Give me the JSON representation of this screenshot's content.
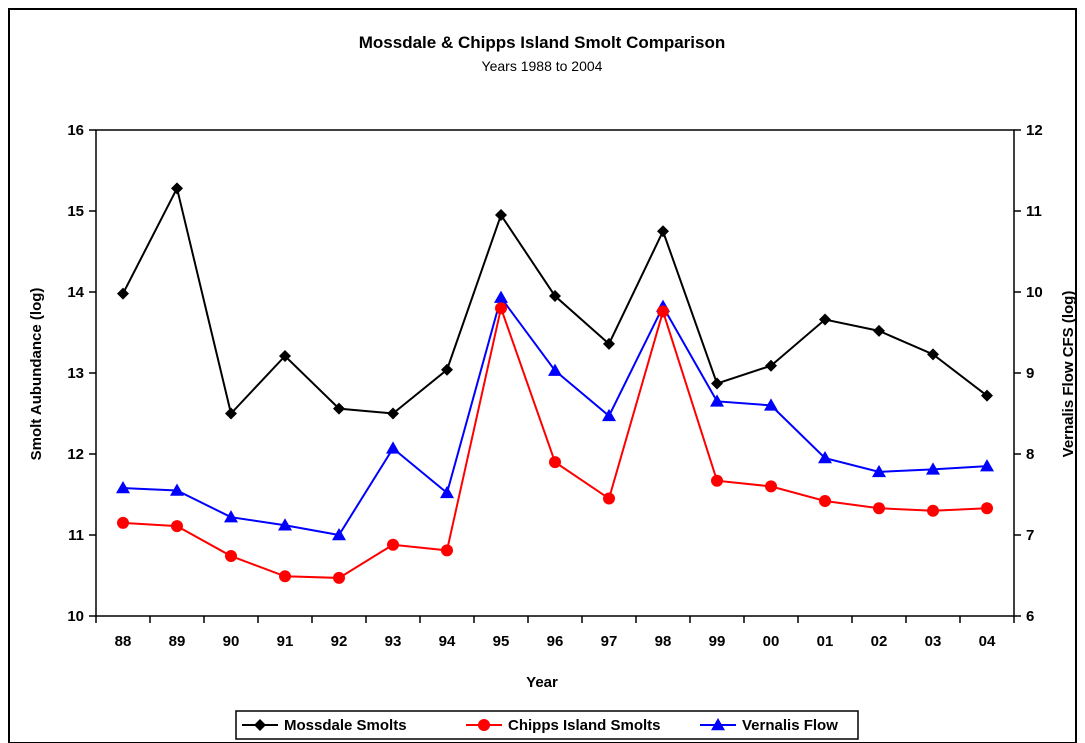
{
  "chart_data": {
    "type": "line",
    "title": "Mossdale & Chipps Island Smolt Comparison",
    "subtitle": "Years 1988 to 2004",
    "xlabel": "Year",
    "ylabel": "Smolt Aubundance (log)",
    "y2label": "Vernalis Flow CFS (log)",
    "categories": [
      "88",
      "89",
      "90",
      "91",
      "92",
      "93",
      "94",
      "95",
      "96",
      "97",
      "98",
      "99",
      "00",
      "01",
      "02",
      "03",
      "04"
    ],
    "ylim": [
      10,
      16
    ],
    "yticks": [
      "10",
      "11",
      "12",
      "13",
      "14",
      "15",
      "16"
    ],
    "y2lim": [
      6,
      12
    ],
    "y2ticks": [
      "6",
      "7",
      "8",
      "9",
      "10",
      "11",
      "12"
    ],
    "grid": false,
    "legend_position": "bottom",
    "series": [
      {
        "name": "Mossdale Smolts",
        "axis": "left",
        "color": "#000000",
        "marker": "diamond",
        "values": [
          13.98,
          15.28,
          12.5,
          13.21,
          12.56,
          12.5,
          13.04,
          14.95,
          13.95,
          13.36,
          14.75,
          12.87,
          13.09,
          13.66,
          13.52,
          13.23,
          12.72
        ]
      },
      {
        "name": "Chipps Island Smolts",
        "axis": "left",
        "color": "#ff0000",
        "marker": "circle",
        "values": [
          11.15,
          11.11,
          10.74,
          10.49,
          10.47,
          10.88,
          10.81,
          13.8,
          11.9,
          11.45,
          13.76,
          11.67,
          11.6,
          11.42,
          11.33,
          11.3,
          11.33
        ]
      },
      {
        "name": "Vernalis Flow",
        "axis": "right",
        "color": "#0000ff",
        "marker": "triangle",
        "values": [
          7.58,
          7.55,
          7.22,
          7.12,
          7.0,
          8.07,
          7.52,
          9.93,
          9.03,
          8.47,
          9.82,
          8.65,
          8.6,
          7.95,
          7.78,
          7.81,
          7.85
        ]
      }
    ]
  }
}
